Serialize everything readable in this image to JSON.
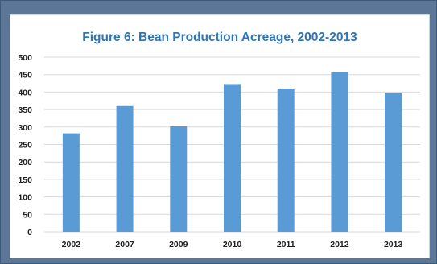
{
  "chart_data": {
    "type": "bar",
    "title": "Figure 6:  Bean Production Acreage, 2002-2013",
    "categories": [
      "2002",
      "2007",
      "2009",
      "2010",
      "2011",
      "2012",
      "2013"
    ],
    "values": [
      282,
      360,
      302,
      423,
      410,
      457,
      398
    ],
    "xlabel": "",
    "ylabel": "",
    "ylim": [
      0,
      500
    ],
    "yticks": [
      "0",
      "50",
      "100",
      "150",
      "200",
      "250",
      "300",
      "350",
      "400",
      "450",
      "500"
    ],
    "grid": true,
    "legend": "none",
    "colors": {
      "bar": "#5b9bd5",
      "title": "#2e75b6",
      "grid": "#d9d9d9",
      "frame": "#5b7696"
    }
  }
}
